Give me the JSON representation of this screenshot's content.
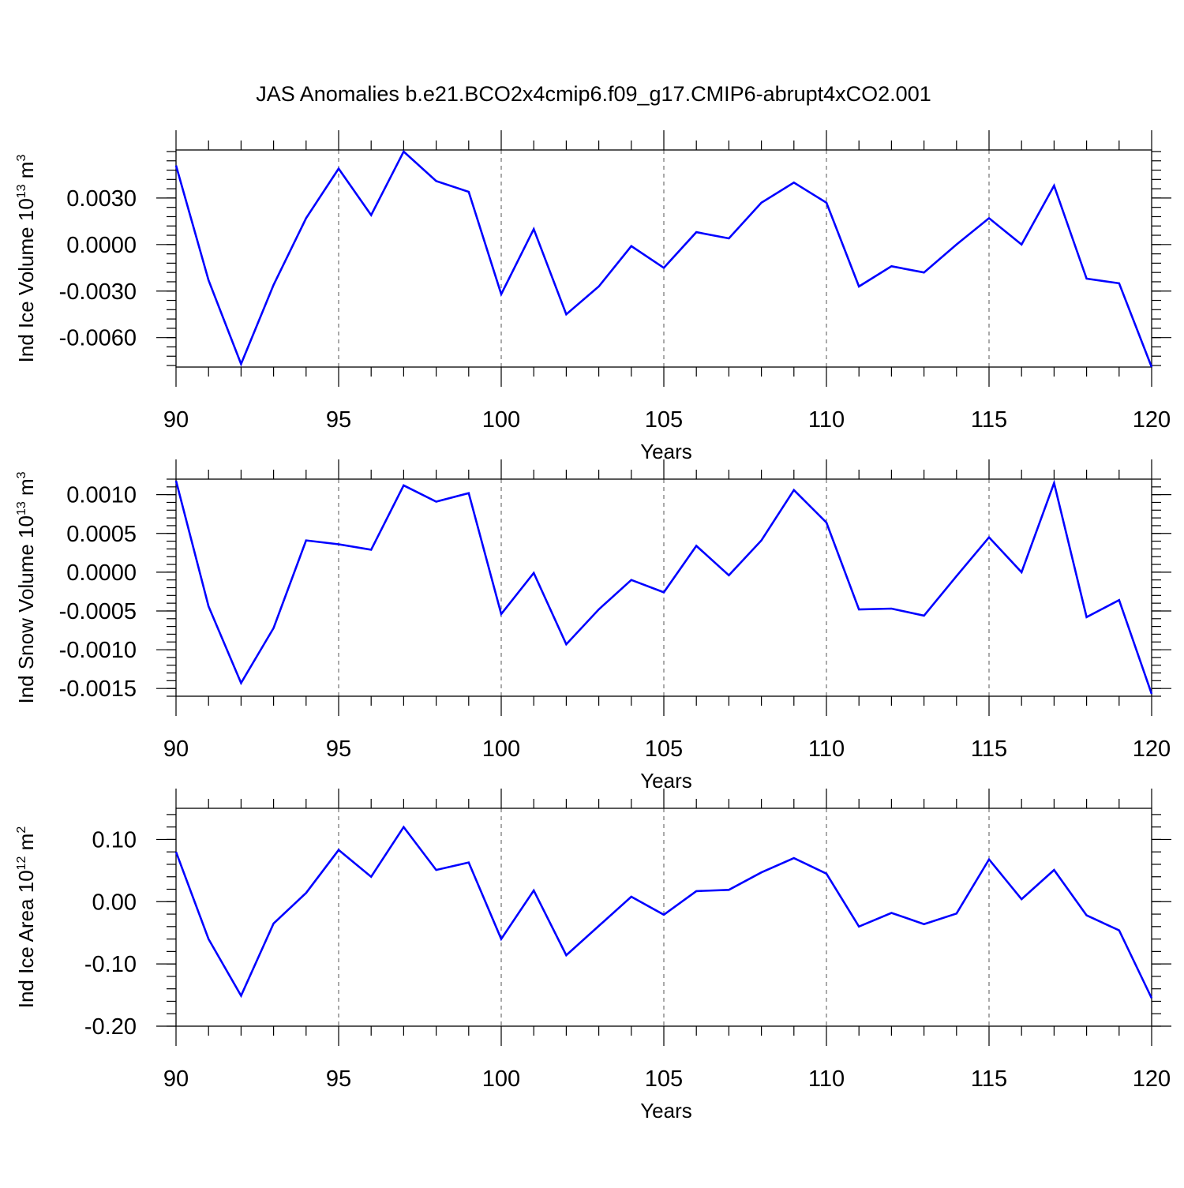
{
  "chart_data": {
    "type": "line",
    "title": "JAS Anomalies b.e21.BCO2x4cmip6.f09_g17.CMIP6-abrupt4xCO2.001",
    "x": [
      90,
      91,
      92,
      93,
      94,
      95,
      96,
      97,
      98,
      99,
      100,
      101,
      102,
      103,
      104,
      105,
      106,
      107,
      108,
      109,
      110,
      111,
      112,
      113,
      114,
      115,
      116,
      117,
      118,
      119,
      120
    ],
    "panels": [
      {
        "ylabel_base": "Ind Ice Volume 10",
        "ylabel_exp": "13",
        "ylabel_unit": " m",
        "ylabel_unit_exp": "3",
        "xlabel": "Years",
        "xlim": [
          90,
          120
        ],
        "xticks": [
          90,
          95,
          100,
          105,
          110,
          115,
          120
        ],
        "xtick_labels": [
          "90",
          "95",
          "100",
          "105",
          "110",
          "115",
          "120"
        ],
        "ylim": [
          -0.0079,
          0.0061
        ],
        "yticks": [
          -0.006,
          -0.003,
          0.0,
          0.003
        ],
        "ytick_labels": [
          "-0.0060",
          "-0.0030",
          "0.0000",
          "0.0030"
        ],
        "yminor_step": 0.0006,
        "values": [
          0.0051,
          -0.0023,
          -0.0077,
          -0.0026,
          0.0017,
          0.0049,
          0.0019,
          0.006,
          0.0041,
          0.0034,
          -0.0032,
          0.001,
          -0.0045,
          -0.0027,
          -0.0001,
          -0.0015,
          0.0008,
          0.0004,
          0.0027,
          0.004,
          0.0027,
          -0.0027,
          -0.0014,
          -0.0018,
          0.0,
          0.0017,
          0.0,
          0.0038,
          -0.0022,
          -0.0025,
          -0.0079
        ]
      },
      {
        "ylabel_base": "Ind Snow Volume 10",
        "ylabel_exp": "13",
        "ylabel_unit": " m",
        "ylabel_unit_exp": "3",
        "xlabel": "Years",
        "xlim": [
          90,
          120
        ],
        "xticks": [
          90,
          95,
          100,
          105,
          110,
          115,
          120
        ],
        "xtick_labels": [
          "90",
          "95",
          "100",
          "105",
          "110",
          "115",
          "120"
        ],
        "ylim": [
          -0.0016,
          0.0012
        ],
        "yticks": [
          -0.0015,
          -0.001,
          -0.0005,
          0.0,
          0.0005,
          0.001
        ],
        "ytick_labels": [
          "-0.0015",
          "-0.0010",
          "-0.0005",
          "0.0000",
          "0.0005",
          "0.0010"
        ],
        "yminor_step": 0.0001,
        "values": [
          0.00118,
          -0.00044,
          -0.00143,
          -0.00072,
          0.00041,
          0.00036,
          0.00029,
          0.00112,
          0.00091,
          0.00102,
          -0.00054,
          -1e-05,
          -0.00093,
          -0.00048,
          -0.0001,
          -0.00026,
          0.00034,
          -4e-05,
          0.00041,
          0.00106,
          0.00064,
          -0.00048,
          -0.00047,
          -0.00056,
          -5e-05,
          0.00045,
          0.0,
          0.00115,
          -0.00058,
          -0.00036,
          -0.00157
        ]
      },
      {
        "ylabel_base": "Ind Ice Area 10",
        "ylabel_exp": "12",
        "ylabel_unit": " m",
        "ylabel_unit_exp": "2",
        "xlabel": "Years",
        "xlim": [
          90,
          120
        ],
        "xticks": [
          90,
          95,
          100,
          105,
          110,
          115,
          120
        ],
        "xtick_labels": [
          "90",
          "95",
          "100",
          "105",
          "110",
          "115",
          "120"
        ],
        "ylim": [
          -0.2,
          0.15
        ],
        "yticks": [
          -0.2,
          -0.1,
          0.0,
          0.1
        ],
        "ytick_labels": [
          "-0.20",
          "-0.10",
          "0.00",
          "0.10"
        ],
        "yminor_step": 0.02,
        "values": [
          0.08,
          -0.06,
          -0.151,
          -0.035,
          0.014,
          0.083,
          0.04,
          0.12,
          0.051,
          0.063,
          -0.06,
          0.018,
          -0.086,
          -0.039,
          0.008,
          -0.021,
          0.017,
          0.019,
          0.047,
          0.07,
          0.045,
          -0.04,
          -0.018,
          -0.036,
          -0.019,
          0.068,
          0.004,
          0.051,
          -0.022,
          -0.046,
          -0.155
        ]
      }
    ]
  }
}
